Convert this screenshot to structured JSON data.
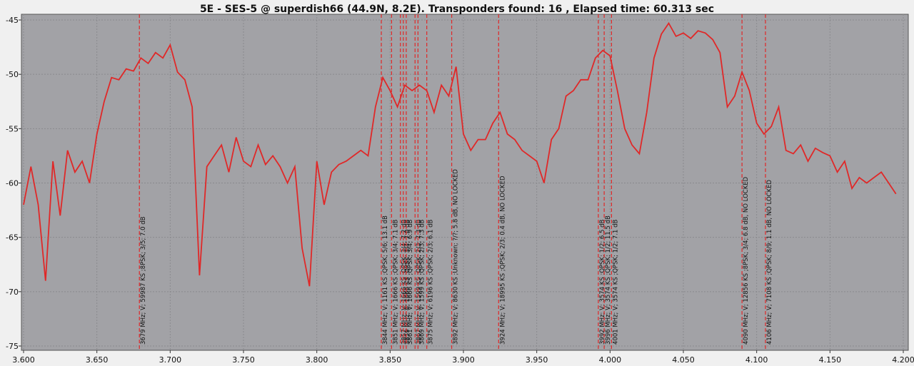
{
  "chart_data": {
    "type": "line",
    "title": "5E - SES-5 @ superdish66 (44.9N, 8.2E). Transponders found: 16 , Elapsed time: 60.313 sec",
    "x": [
      3.6,
      3.605,
      3.61,
      3.615,
      3.62,
      3.625,
      3.63,
      3.635,
      3.64,
      3.645,
      3.65,
      3.655,
      3.66,
      3.665,
      3.67,
      3.675,
      3.68,
      3.685,
      3.69,
      3.695,
      3.7,
      3.705,
      3.71,
      3.715,
      3.72,
      3.725,
      3.73,
      3.735,
      3.74,
      3.745,
      3.75,
      3.755,
      3.76,
      3.765,
      3.77,
      3.775,
      3.78,
      3.785,
      3.79,
      3.795,
      3.8,
      3.805,
      3.81,
      3.815,
      3.82,
      3.825,
      3.83,
      3.835,
      3.84,
      3.845,
      3.85,
      3.855,
      3.86,
      3.865,
      3.87,
      3.875,
      3.88,
      3.885,
      3.89,
      3.895,
      3.9,
      3.905,
      3.91,
      3.915,
      3.92,
      3.925,
      3.93,
      3.935,
      3.94,
      3.945,
      3.95,
      3.955,
      3.96,
      3.965,
      3.97,
      3.975,
      3.98,
      3.985,
      3.99,
      3.995,
      4.0,
      4.005,
      4.01,
      4.015,
      4.02,
      4.025,
      4.03,
      4.035,
      4.04,
      4.045,
      4.05,
      4.055,
      4.06,
      4.065,
      4.07,
      4.075,
      4.08,
      4.085,
      4.09,
      4.095,
      4.1,
      4.105,
      4.11,
      4.115,
      4.12,
      4.125,
      4.13,
      4.135,
      4.14,
      4.145,
      4.15,
      4.155,
      4.16,
      4.165,
      4.17,
      4.175,
      4.18,
      4.185,
      4.19,
      4.195
    ],
    "series": [
      {
        "color": "#e02828",
        "values": [
          -62,
          -58.5,
          -62,
          -69,
          -58,
          -63,
          -57,
          -59,
          -58,
          -60,
          -55.5,
          -52.5,
          -50.3,
          -50.5,
          -49.5,
          -49.7,
          -48.5,
          -49,
          -48,
          -48.5,
          -47.3,
          -49.8,
          -50.5,
          -53,
          -68.5,
          -58.5,
          -57.5,
          -56.5,
          -59,
          -55.8,
          -58,
          -58.5,
          -56.5,
          -58.3,
          -57.5,
          -58.5,
          -60,
          -58.5,
          -66,
          -69.5,
          -58,
          -62,
          -59,
          -58.3,
          -58,
          -57.5,
          -57,
          -57.5,
          -53,
          -50.3,
          -51.5,
          -53,
          -51,
          -51.5,
          -51,
          -51.5,
          -53.5,
          -51,
          -52,
          -49.3,
          -55.5,
          -57,
          -56,
          -56,
          -54.5,
          -53.5,
          -55.5,
          -56,
          -57,
          -57.5,
          -58,
          -60,
          -56,
          -55,
          -52,
          -51.5,
          -50.5,
          -50.5,
          -48.5,
          -47.8,
          -48.3,
          -51.5,
          -55,
          -56.5,
          -57.3,
          -53.5,
          -48.5,
          -46.3,
          -45.3,
          -46.5,
          -46.2,
          -46.7,
          -46,
          -46.2,
          -46.8,
          -48,
          -53,
          -52,
          -49.8,
          -51.5,
          -54.5,
          -55.5,
          -54.8,
          -53,
          -57,
          -57.3,
          -56.5,
          -58,
          -56.8,
          -57.2,
          -57.5,
          -59,
          -58,
          -60.5,
          -59.5,
          -60,
          -59.5,
          -59,
          -60,
          -61
        ]
      }
    ],
    "markers": [
      {
        "x": 3.679,
        "label": "3679 MHz; V; 59987 KS ;8PSK; 3/5; 7.0 dB"
      },
      {
        "x": 3.844,
        "label": "3844 MHz; V; 1161 KS ;QPSK; 5/6; 13.1 dB"
      },
      {
        "x": 3.851,
        "label": "3851 MHz; V; 1666 KS ;QPSK; 3/4; 7.1 dB"
      },
      {
        "x": 3.857,
        "label": "3857 MHz; V; 1666 KS ;QPSK; 3/4; 7.2 dB"
      },
      {
        "x": 3.859,
        "label": "3859 MHz; V; 1666 KS ;QPSK; 3/4; 7.0 dB"
      },
      {
        "x": 3.861,
        "label": "3861 MHz; V; 1666 KS ;QPSK; 3/4; 6.9 dB"
      },
      {
        "x": 3.867,
        "label": "3867 MHz; V; 1599 KS ;QPSK; 2/3; 7.3 dB"
      },
      {
        "x": 3.869,
        "label": "3869 MHz; V; 1599 KS ;QPSK; 2/3; 7.3 dB"
      },
      {
        "x": 3.875,
        "label": "3875 MHz; V; 6196 KS ;QPSK; 2/3; 6.1 dB"
      },
      {
        "x": 3.892,
        "label": "3892 MHz; V; 8630 KS ;Unknown; ?/?; 5.8 dB, NO LOCKED"
      },
      {
        "x": 3.924,
        "label": "3924 MHz; V; 18995 KS ;QPSK; 2/3; 0.4 dB, NO LOCKED"
      },
      {
        "x": 3.992,
        "label": "3992 MHz; V; 3574 KS ;QPSK; 1/2; 6.5 dB"
      },
      {
        "x": 3.996,
        "label": "3996 MHz; V; 3574 KS ;QPSK; 1/2; 11.5 dB"
      },
      {
        "x": 4.001,
        "label": "4001 MHz; V; 3574 KS ;QPSK; 1/2; 7.1 dB"
      },
      {
        "x": 4.09,
        "label": "4090 MHz; V; 12856 KS ;8PSK; 3/4; 6.8 dB, NO LOCKED"
      },
      {
        "x": 4.106,
        "label": "4106 MHz; V; 7108 KS ;QPSK; 8/9; 1.1 dB, NO LOCKED"
      }
    ],
    "marker_color": "#e02828",
    "xlim": [
      3.6,
      4.2
    ],
    "ylim": [
      -75,
      -45
    ],
    "xticks": [
      {
        "value": 3.6,
        "label": "3.600"
      },
      {
        "value": 3.65,
        "label": "3.650"
      },
      {
        "value": 3.7,
        "label": "3.700"
      },
      {
        "value": 3.75,
        "label": "3.750"
      },
      {
        "value": 3.8,
        "label": "3.800"
      },
      {
        "value": 3.85,
        "label": "3.850"
      },
      {
        "value": 3.9,
        "label": "3.900"
      },
      {
        "value": 3.95,
        "label": "3.950"
      },
      {
        "value": 4.0,
        "label": "4.000"
      },
      {
        "value": 4.05,
        "label": "4.050"
      },
      {
        "value": 4.1,
        "label": "4.100"
      },
      {
        "value": 4.15,
        "label": "4.150"
      },
      {
        "value": 4.2,
        "label": "4.200"
      }
    ],
    "yticks": [
      -45,
      -50,
      -55,
      -60,
      -65,
      -70,
      -75
    ],
    "grid": true
  }
}
